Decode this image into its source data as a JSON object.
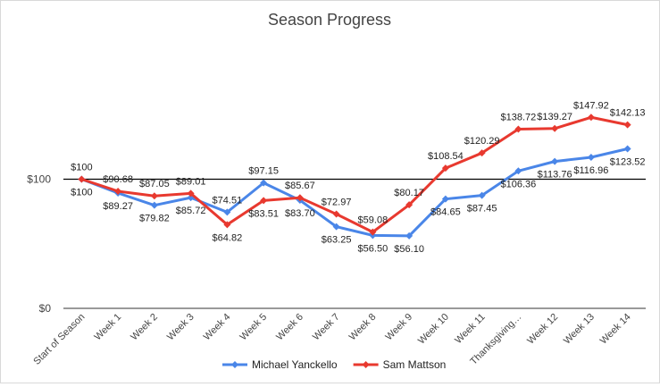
{
  "chart_data": {
    "type": "line",
    "title": "Season Progress",
    "xlabel": "",
    "ylabel": "",
    "categories": [
      "Start of Season",
      "Week 1",
      "Week 2",
      "Week 3",
      "Week 4",
      "Week 5",
      "Week 6",
      "Week 7",
      "Week 8",
      "Week 9",
      "Week 10",
      "Week 11",
      "Thanksgiving…",
      "Week 12",
      "Week 13",
      "Week 14"
    ],
    "series": [
      {
        "name": "Michael Yanckello",
        "color": "#4a86e8",
        "values": [
          100,
          89.27,
          79.82,
          85.72,
          74.51,
          97.15,
          83.7,
          63.25,
          56.5,
          56.1,
          84.65,
          87.45,
          106.36,
          113.76,
          116.96,
          123.52
        ],
        "labels": [
          "$100",
          "$89.27",
          "$79.82",
          "$85.72",
          "$74.51",
          "$97.15",
          "$83.70",
          "$63.25",
          "$56.50",
          "$56.10",
          "$84.65",
          "$87.45",
          "$106.36",
          "$113.76",
          "$116.96",
          "$123.52"
        ]
      },
      {
        "name": "Sam Mattson",
        "color": "#e8392f",
        "values": [
          100,
          90.68,
          87.05,
          89.01,
          64.82,
          83.51,
          85.67,
          72.97,
          59.08,
          80.17,
          108.54,
          120.29,
          138.72,
          139.27,
          147.92,
          142.13
        ],
        "labels": [
          "$100",
          "$90.68",
          "$87.05",
          "$89.01",
          "$64.82",
          "$83.51",
          "$85.67",
          "$72.97",
          "$59.08",
          "$80.17",
          "$108.54",
          "$120.29",
          "$138.72",
          "$139.27",
          "$147.92",
          "$142.13"
        ]
      }
    ],
    "ylim": [
      0,
      200
    ],
    "yticks": [
      0,
      100
    ],
    "ytick_labels": [
      "$0",
      "$100"
    ],
    "grid": false,
    "reference_line": 100,
    "legend_position": "bottom"
  }
}
